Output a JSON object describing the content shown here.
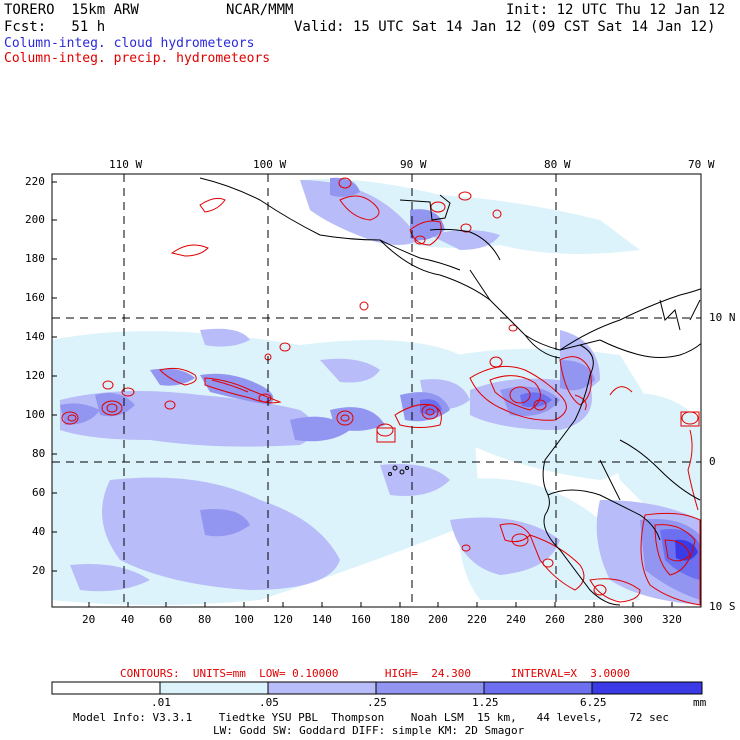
{
  "header": {
    "model": "TORERO  15km ARW",
    "center": "NCAR/MMM",
    "init": "Init: 12 UTC Thu 12 Jan 12",
    "fcst": "Fcst:   51 h",
    "valid": "Valid: 15 UTC Sat 14 Jan 12 (09 CST Sat 14 Jan 12)",
    "field_cloud": "Column-integ. cloud hydrometeors",
    "field_precip": "Column-integ. precip. hydrometeors"
  },
  "colors": {
    "cloud_label": "#2a2ad8",
    "precip_label": "#e00000",
    "contour": "#e00000",
    "coast": "#000000",
    "shade_1": "#dcf3fb",
    "shade_2": "#b8bcf8",
    "shade_3": "#9296f0",
    "shade_4": "#6b6ff0",
    "shade_5": "#3a3ae6"
  },
  "map": {
    "top_longitude_labels": [
      "110 W",
      "100 W",
      "90 W",
      "80 W",
      "70 W"
    ],
    "right_latitude_labels": [
      "10 N",
      "0",
      "10 S"
    ],
    "y_grid_ticks": [
      "220",
      "200",
      "180",
      "160",
      "140",
      "120",
      "100",
      "80",
      "60",
      "40",
      "20"
    ],
    "x_grid_ticks": [
      "20",
      "40",
      "60",
      "80",
      "100",
      "120",
      "140",
      "160",
      "180",
      "200",
      "220",
      "240",
      "260",
      "280",
      "300",
      "320"
    ]
  },
  "contours_note": {
    "label": "CONTOURS:  UNITS=mm  LOW= 0.10000       HIGH=  24.300      INTERVAL=X  3.0000"
  },
  "colorbar": {
    "labels": [
      ".01",
      ".05",
      ".25",
      "1.25",
      "6.25"
    ],
    "unit": "mm",
    "bins": [
      "#ffffff",
      "#dcf3fb",
      "#b8bcf8",
      "#9296f0",
      "#6b6ff0",
      "#3a3ae6"
    ]
  },
  "model_info": {
    "line1": "Model Info: V3.3.1    Tiedtke YSU PBL  Thompson    Noah LSM  15 km,   44 levels,    72 sec",
    "line2": "LW: Godd SW: Goddard DIFF: simple KM: 2D Smagor"
  }
}
